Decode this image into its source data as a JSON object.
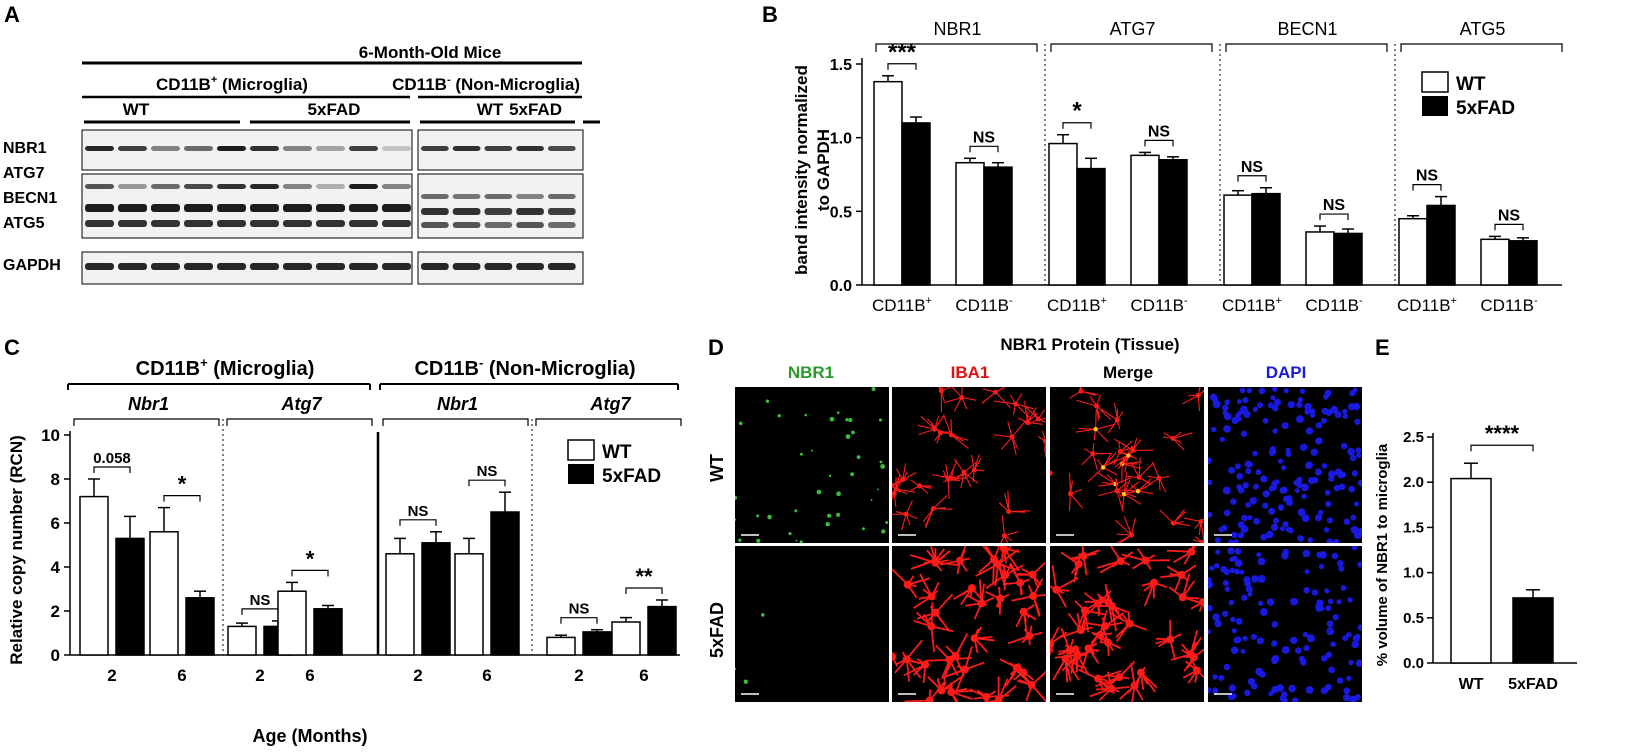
{
  "panels": {
    "A": "A",
    "B": "B",
    "C": "C",
    "D": "D",
    "E": "E"
  },
  "panel_a": {
    "title": "6-Month-Old Mice",
    "group_left": "CD11B",
    "group_left_sup": "+",
    "group_left_rest": " (Microglia)",
    "group_right": "CD11B",
    "group_right_sup": "-",
    "group_right_rest": " (Non-Microglia)",
    "wt": "WT",
    "fad": "5xFAD",
    "rows": [
      "NBR1",
      "ATG7",
      "BECN1",
      "ATG5",
      "GAPDH"
    ]
  },
  "panel_d": {
    "title": "NBR1 Protein (Tissue)",
    "columns": [
      {
        "label": "NBR1",
        "color": "#2a9a2a"
      },
      {
        "label": "IBA1",
        "color": "#e01010"
      },
      {
        "label": "Merge",
        "color": "#000000"
      },
      {
        "label": "DAPI",
        "color": "#1a1ae0"
      }
    ],
    "rows": [
      "WT",
      "5xFAD"
    ]
  },
  "chart_data": [
    {
      "panel": "B",
      "type": "bar",
      "ylabel_line1": "band  intensity normalized",
      "ylabel_line2": "to GAPDH",
      "ylim": [
        0,
        1.5
      ],
      "yticks": [
        "0.0",
        "0.5",
        "1.0",
        "1.5"
      ],
      "groups": [
        "NBR1",
        "ATG7",
        "BECN1",
        "ATG5"
      ],
      "categories": [
        "CD11B+",
        "CD11B-",
        "CD11B+",
        "CD11B-",
        "CD11B+",
        "CD11B-",
        "CD11B+",
        "CD11B-"
      ],
      "tick_base": "CD11B",
      "tick_sups": [
        "+",
        "-",
        "+",
        "-",
        "+",
        "-",
        "+",
        "-"
      ],
      "legend": {
        "wt": "WT",
        "fad": "5xFAD",
        "position": "top-right"
      },
      "series": [
        {
          "name": "WT",
          "values": [
            1.38,
            0.83,
            0.96,
            0.88,
            0.61,
            0.36,
            0.45,
            0.31
          ],
          "errors": [
            0.04,
            0.03,
            0.06,
            0.02,
            0.03,
            0.04,
            0.02,
            0.02
          ]
        },
        {
          "name": "5xFAD",
          "values": [
            1.1,
            0.8,
            0.79,
            0.85,
            0.62,
            0.35,
            0.54,
            0.3
          ],
          "errors": [
            0.04,
            0.03,
            0.07,
            0.02,
            0.04,
            0.03,
            0.06,
            0.02
          ]
        }
      ],
      "significance": [
        "***",
        "NS",
        "*",
        "NS",
        "NS",
        "NS",
        "NS",
        "NS"
      ]
    },
    {
      "panel": "C",
      "type": "bar",
      "ylabel": "Relative copy number (RCN)",
      "xlabel": "Age (Months)",
      "ylim": [
        0,
        10
      ],
      "yticks": [
        "0",
        "2",
        "4",
        "6",
        "8",
        "10"
      ],
      "headers": {
        "left": "CD11B",
        "left_sup": "+",
        "left_rest": " (Microglia)",
        "right": "CD11B",
        "right_sup": "-",
        "right_rest": " (Non-Microglia)"
      },
      "genes": [
        "Nbr1",
        "Atg7",
        "Nbr1",
        "Atg7"
      ],
      "categories": [
        "2",
        "6",
        "2",
        "6",
        "2",
        "6",
        "2",
        "6"
      ],
      "legend": {
        "wt": "WT",
        "fad": "5xFAD",
        "position": "top-right"
      },
      "series": [
        {
          "name": "WT",
          "values": [
            7.2,
            5.6,
            1.3,
            2.9,
            4.6,
            4.6,
            0.8,
            1.5
          ],
          "errors": [
            0.8,
            1.1,
            0.15,
            0.4,
            0.7,
            0.7,
            0.1,
            0.2
          ]
        },
        {
          "name": "5xFAD",
          "values": [
            5.3,
            2.6,
            1.3,
            2.1,
            5.1,
            6.5,
            1.05,
            2.2
          ],
          "errors": [
            1.0,
            0.3,
            0.25,
            0.15,
            0.5,
            0.9,
            0.1,
            0.3
          ]
        }
      ],
      "significance": [
        "0.058",
        "*",
        "NS",
        "*",
        "NS",
        "NS",
        "NS",
        "**"
      ]
    },
    {
      "panel": "E",
      "type": "bar",
      "ylabel": "% volume of NBR1 to microglia",
      "ylim": [
        0,
        2.5
      ],
      "yticks": [
        "0.0",
        "0.5",
        "1.0",
        "1.5",
        "2.0",
        "2.5"
      ],
      "categories": [
        "WT",
        "5xFAD"
      ],
      "values": [
        2.04,
        0.72
      ],
      "errors": [
        0.17,
        0.09
      ],
      "significance": "****"
    }
  ]
}
